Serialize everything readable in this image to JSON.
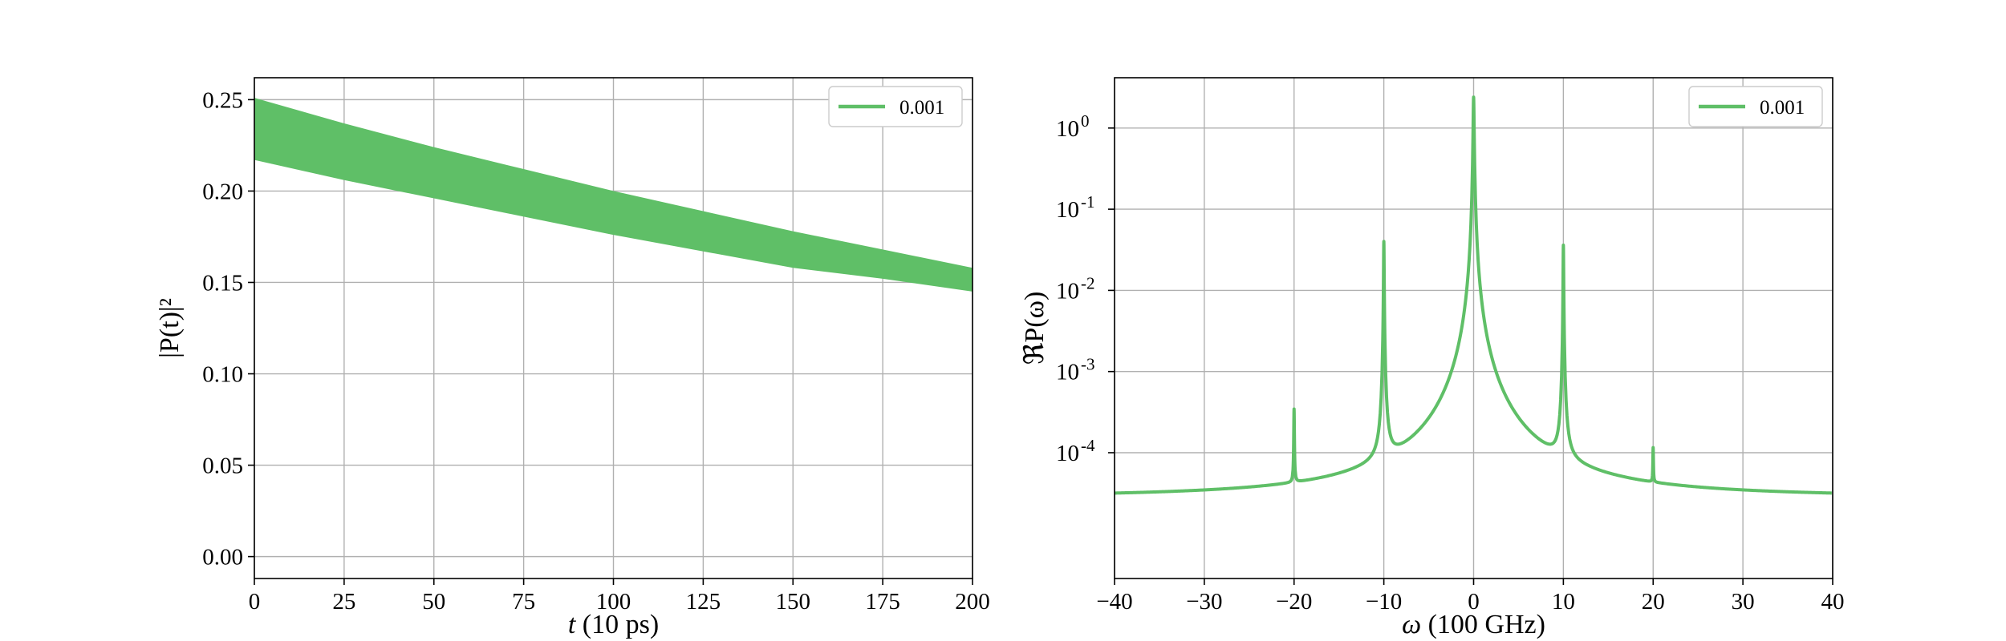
{
  "chart_data": [
    {
      "type": "area",
      "xlabel": "t (10 ps)",
      "ylabel": "|P(t)|²",
      "xlim": [
        0,
        200
      ],
      "ylim": [
        -0.012,
        0.262
      ],
      "xticks": [
        0,
        25,
        50,
        75,
        100,
        125,
        150,
        175,
        200
      ],
      "xtick_labels": [
        "0",
        "25",
        "50",
        "75",
        "100",
        "125",
        "150",
        "175",
        "200"
      ],
      "yticks": [
        0.0,
        0.05,
        0.1,
        0.15,
        0.2,
        0.25
      ],
      "ytick_labels": [
        "0.00",
        "0.05",
        "0.10",
        "0.15",
        "0.20",
        "0.25"
      ],
      "grid": true,
      "legend_position": "top-right",
      "color": "#5fbf67",
      "series": [
        {
          "name": "0.001",
          "x": [
            0,
            25,
            50,
            75,
            100,
            125,
            150,
            175,
            200
          ],
          "upper": [
            0.251,
            0.237,
            0.224,
            0.212,
            0.2,
            0.189,
            0.178,
            0.168,
            0.158
          ],
          "lower": [
            0.217,
            0.206,
            0.196,
            0.186,
            0.176,
            0.167,
            0.158,
            0.152,
            0.145
          ]
        }
      ]
    },
    {
      "type": "line",
      "xlabel": "ω (100 GHz)",
      "ylabel": "ℜP(ω)",
      "xlim": [
        -40,
        40
      ],
      "ylim_log10": [
        -5.55,
        0.62
      ],
      "yscale": "log",
      "xticks": [
        -40,
        -30,
        -20,
        -10,
        0,
        10,
        20,
        30,
        40
      ],
      "xtick_labels": [
        "−40",
        "−30",
        "−20",
        "−10",
        "0",
        "10",
        "20",
        "30",
        "40"
      ],
      "yticks": [
        0.0001,
        0.001,
        0.01,
        0.1,
        1
      ],
      "ytick_labels": [
        {
          "base": "10",
          "exp": "-4"
        },
        {
          "base": "10",
          "exp": "-3"
        },
        {
          "base": "10",
          "exp": "-2"
        },
        {
          "base": "10",
          "exp": "-1"
        },
        {
          "base": "10",
          "exp": "0"
        }
      ],
      "grid": true,
      "legend_position": "top-right",
      "color": "#5fbf67",
      "series": [
        {
          "name": "0.001",
          "baseline": 2.8e-05,
          "peaks": [
            {
              "x": -20,
              "y": 0.00033
            },
            {
              "x": -10,
              "y": 0.04
            },
            {
              "x": 0,
              "y": 2.4
            },
            {
              "x": 10,
              "y": 0.036
            },
            {
              "x": 20,
              "y": 0.0001
            }
          ]
        }
      ]
    }
  ]
}
